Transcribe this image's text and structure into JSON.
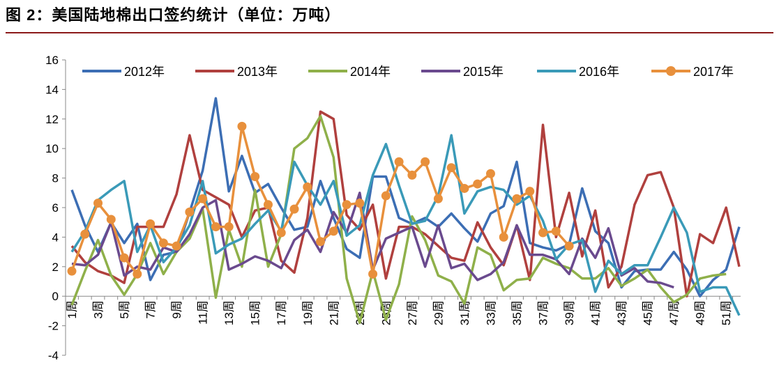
{
  "header": {
    "title": "图 2：美国陆地棉出口签约统计（单位：万吨）"
  },
  "colors": {
    "title_rule": "#8b1a1a",
    "axis": "#888888",
    "s2012": "#3c6eb4",
    "s2013": "#b0403e",
    "s2014": "#8fb04a",
    "s2015": "#6a4a8e",
    "s2016": "#3a9ab8",
    "s2017": "#e8903c"
  },
  "chart_data": {
    "type": "line",
    "title": "",
    "xlabel": "",
    "ylabel": "",
    "ylim": [
      -4,
      16
    ],
    "yticks": [
      -4,
      -2,
      0,
      2,
      4,
      6,
      8,
      10,
      12,
      14,
      16
    ],
    "x": [
      1,
      2,
      3,
      4,
      5,
      6,
      7,
      8,
      9,
      10,
      11,
      12,
      13,
      14,
      15,
      16,
      17,
      18,
      19,
      20,
      21,
      22,
      23,
      24,
      25,
      26,
      27,
      28,
      29,
      30,
      31,
      32,
      33,
      34,
      35,
      36,
      37,
      38,
      39,
      40,
      41,
      42,
      43,
      44,
      45,
      46,
      47,
      48,
      49,
      50,
      51,
      52
    ],
    "xtick_labels": [
      "1周",
      "3周",
      "5周",
      "7周",
      "9周",
      "11周",
      "13周",
      "15周",
      "17周",
      "19周",
      "21周",
      "23周",
      "25周",
      "27周",
      "29周",
      "31周",
      "33周",
      "35周",
      "37周",
      "39周",
      "41周",
      "43周",
      "45周",
      "47周",
      "49周",
      "51周"
    ],
    "legend_position": "top",
    "series": [
      {
        "name": "2012年",
        "color_key": "s2012",
        "marker": false,
        "values": [
          7.2,
          4.8,
          3.0,
          5.0,
          3.6,
          4.9,
          1.1,
          2.8,
          3.0,
          5.7,
          8.5,
          13.4,
          7.1,
          9.5,
          7.0,
          7.6,
          6.0,
          4.5,
          4.7,
          7.8,
          5.3,
          3.2,
          2.6,
          8.1,
          8.1,
          5.3,
          4.9,
          5.3,
          4.7,
          5.6,
          4.6,
          3.7,
          5.6,
          6.1,
          9.1,
          3.6,
          3.3,
          3.1,
          3.5,
          7.3,
          4.4,
          3.6,
          0.6,
          1.7,
          1.8,
          1.8,
          3.0,
          1.8,
          0.0,
          1.1,
          1.8,
          4.7
        ]
      },
      {
        "name": "2013年",
        "color_key": "s2013",
        "marker": false,
        "values": [
          3.4,
          2.3,
          1.7,
          1.4,
          0.9,
          4.7,
          4.7,
          4.7,
          6.9,
          10.9,
          7.2,
          6.7,
          6.2,
          4.0,
          5.8,
          6.0,
          2.4,
          1.6,
          5.3,
          12.5,
          12.0,
          5.5,
          4.5,
          6.2,
          1.2,
          4.7,
          4.7,
          4.2,
          3.4,
          2.6,
          2.4,
          5.0,
          3.3,
          2.1,
          4.8,
          1.1,
          11.6,
          4.0,
          7.0,
          2.7,
          5.8,
          0.6,
          2.0,
          6.2,
          8.2,
          8.4,
          6.0,
          0.0,
          4.2,
          3.6,
          6.0,
          2.0
        ]
      },
      {
        "name": "2014年",
        "color_key": "s2014",
        "marker": false,
        "values": [
          -0.6,
          1.7,
          3.8,
          1.4,
          0.1,
          1.5,
          3.6,
          1.5,
          3.0,
          3.9,
          5.9,
          -0.1,
          4.5,
          2.0,
          7.2,
          2.0,
          4.2,
          10.0,
          10.7,
          12.2,
          9.4,
          1.2,
          -1.8,
          1.7,
          -1.6,
          0.8,
          5.4,
          3.8,
          1.4,
          1.0,
          -0.5,
          3.3,
          2.8,
          0.4,
          1.1,
          1.2,
          2.6,
          2.2,
          1.9,
          1.2,
          1.2,
          1.9,
          0.7,
          1.2,
          1.8,
          0.6,
          -0.4,
          0.1,
          1.2,
          1.4,
          1.5,
          null
        ]
      },
      {
        "name": "2015年",
        "color_key": "s2015",
        "marker": false,
        "values": [
          2.2,
          2.1,
          2.8,
          5.0,
          1.4,
          2.0,
          1.8,
          3.3,
          3.0,
          4.2,
          6.0,
          6.5,
          1.8,
          2.2,
          2.7,
          2.4,
          1.9,
          3.8,
          4.5,
          3.0,
          5.7,
          4.3,
          7.0,
          1.8,
          3.9,
          4.3,
          4.7,
          2.0,
          4.8,
          1.9,
          2.2,
          1.1,
          1.5,
          2.3,
          4.8,
          2.8,
          2.8,
          2.5,
          1.5,
          3.9,
          2.6,
          4.6,
          1.4,
          1.9,
          1.0,
          0.9,
          0.6,
          null,
          null,
          null,
          null,
          null
        ]
      },
      {
        "name": "2016年",
        "color_key": "s2016",
        "marker": false,
        "values": [
          3.0,
          4.4,
          6.5,
          7.2,
          7.8,
          3.0,
          4.8,
          2.3,
          3.3,
          4.8,
          7.8,
          2.9,
          3.5,
          3.9,
          4.9,
          5.8,
          4.4,
          9.1,
          7.5,
          6.2,
          7.8,
          4.1,
          4.8,
          8.2,
          10.3,
          7.5,
          4.9,
          5.1,
          6.8,
          10.9,
          5.6,
          7.1,
          7.4,
          7.2,
          6.2,
          6.8,
          5.1,
          2.5,
          3.5,
          3.8,
          0.3,
          2.4,
          1.5,
          2.1,
          2.1,
          4.0,
          6.0,
          4.3,
          0.3,
          0.6,
          0.6,
          -1.3
        ]
      },
      {
        "name": "2017年",
        "color_key": "s2017",
        "marker": true,
        "values": [
          1.7,
          4.2,
          6.3,
          5.2,
          2.6,
          1.5,
          4.9,
          3.6,
          3.4,
          5.7,
          6.6,
          4.7,
          4.7,
          11.5,
          8.1,
          6.2,
          4.3,
          5.9,
          7.4,
          3.7,
          4.4,
          6.2,
          6.3,
          1.5,
          6.8,
          9.1,
          8.2,
          9.1,
          6.6,
          8.7,
          7.3,
          7.6,
          8.3,
          4.0,
          6.6,
          7.1,
          4.3,
          4.4,
          3.4,
          null,
          null,
          null,
          null,
          null,
          null,
          null,
          null,
          null,
          null,
          null,
          null,
          null
        ]
      }
    ]
  }
}
